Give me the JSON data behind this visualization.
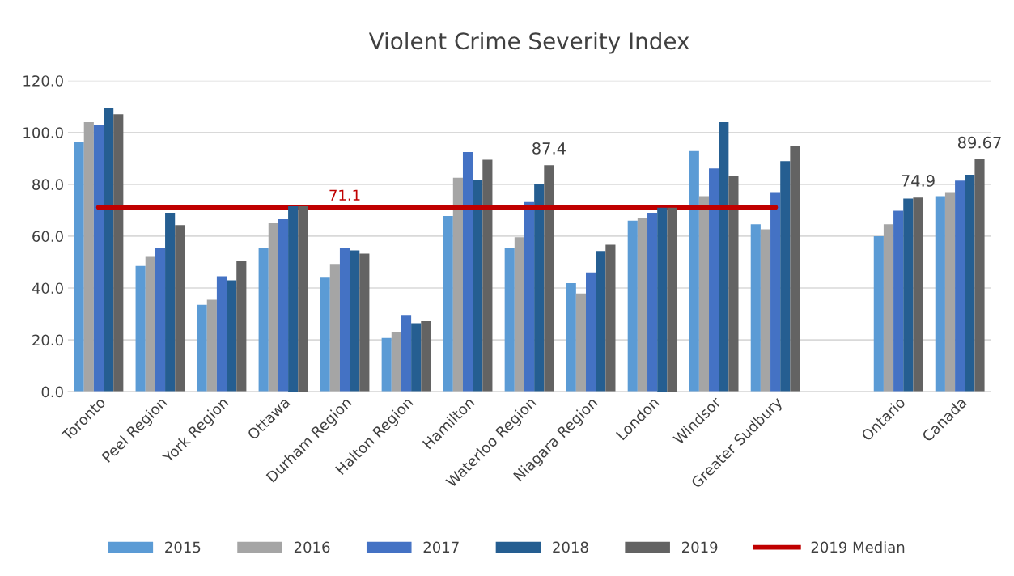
{
  "chart_data": {
    "type": "bar",
    "title": "Violent Crime Severity Index",
    "categories": [
      "Toronto",
      "Peel Region",
      "York Region",
      "Ottawa",
      "Durham Region",
      "Halton Region",
      "Hamilton",
      "Waterloo Region",
      "Niagara Region",
      "London",
      "Windsor",
      "Greater Sudbury",
      null,
      "Ontario",
      "Canada"
    ],
    "series": [
      {
        "name": "2015",
        "color": "#5b9bd5",
        "values": [
          96.5,
          48.5,
          33.5,
          55.5,
          44.0,
          20.7,
          67.8,
          55.4,
          41.9,
          66.0,
          92.8,
          64.6,
          null,
          60.0,
          75.4
        ]
      },
      {
        "name": "2016",
        "color": "#a5a5a5",
        "values": [
          104.0,
          52.0,
          35.5,
          65.0,
          49.3,
          22.8,
          82.5,
          59.6,
          37.9,
          67.0,
          75.4,
          62.6,
          null,
          64.6,
          77.0
        ]
      },
      {
        "name": "2017",
        "color": "#4472c4",
        "values": [
          103.0,
          55.5,
          44.5,
          66.5,
          55.3,
          29.6,
          92.4,
          73.2,
          46.0,
          69.0,
          86.1,
          77.0,
          null,
          69.8,
          81.4
        ]
      },
      {
        "name": "2018",
        "color": "#255e91",
        "values": [
          109.5,
          69.0,
          43.0,
          71.5,
          54.5,
          26.4,
          81.6,
          80.2,
          54.3,
          71.0,
          104.0,
          88.9,
          null,
          74.5,
          83.7
        ]
      },
      {
        "name": "2019",
        "color": "#636363",
        "values": [
          107.0,
          64.3,
          50.3,
          71.5,
          53.3,
          27.2,
          89.5,
          87.4,
          56.7,
          71.0,
          83.1,
          94.6,
          null,
          74.9,
          89.67
        ],
        "value_labels": [
          null,
          null,
          null,
          null,
          null,
          null,
          null,
          "87.4",
          null,
          null,
          null,
          null,
          null,
          "74.9",
          "89.67"
        ]
      },
      {
        "name": "2019 Median",
        "type": "line",
        "color": "#c00000",
        "values": [
          71.1,
          71.1,
          71.1,
          71.1,
          71.1,
          71.1,
          71.1,
          71.1,
          71.1,
          71.1,
          71.1,
          71.1,
          null,
          null,
          null
        ],
        "value_labels": [
          null,
          null,
          null,
          null,
          "71.1",
          null,
          null,
          null,
          null,
          null,
          null,
          null,
          null,
          null,
          null
        ]
      }
    ],
    "ylim": [
      0,
      120
    ],
    "yticks": [
      {
        "value": 0,
        "label": "0.0"
      },
      {
        "value": 20,
        "label": "20.0"
      },
      {
        "value": 40,
        "label": "40.0"
      },
      {
        "value": 60,
        "label": "60.0"
      },
      {
        "value": 80,
        "label": "80.0"
      },
      {
        "value": 100,
        "label": "100.0"
      },
      {
        "value": 120,
        "label": "120.0"
      }
    ],
    "grid": "y",
    "legend": "bottom",
    "marker": "none",
    "line_style": "solid"
  }
}
